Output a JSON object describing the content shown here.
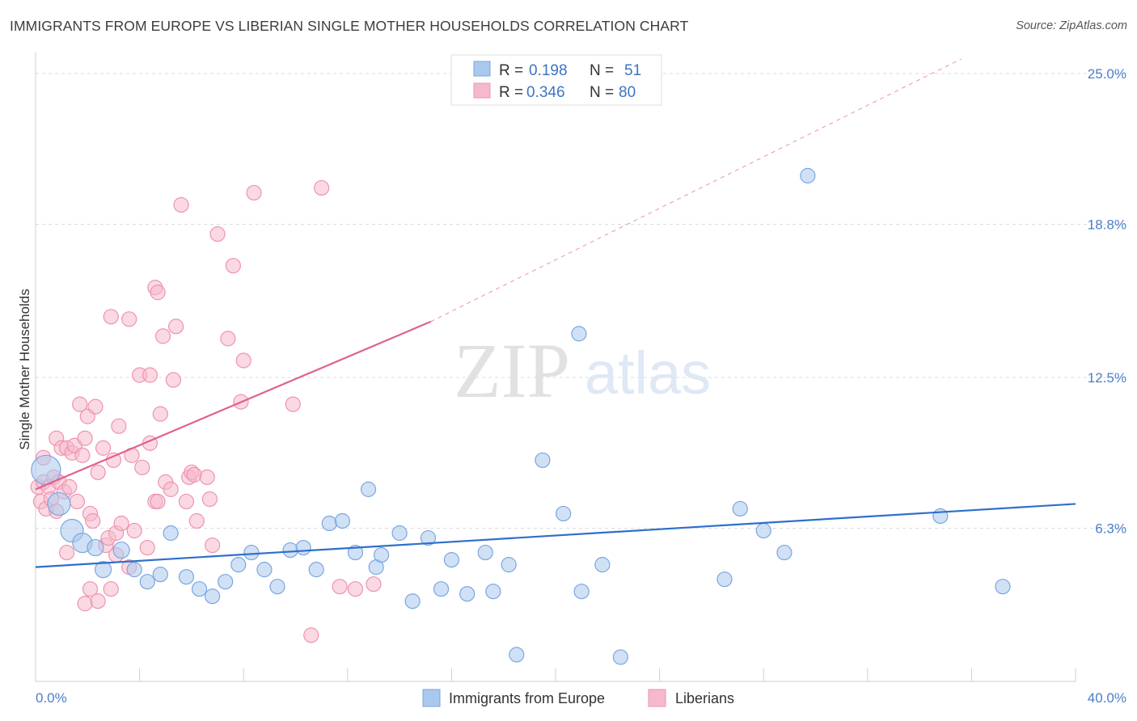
{
  "header": {
    "title": "IMMIGRANTS FROM EUROPE VS LIBERIAN SINGLE MOTHER HOUSEHOLDS CORRELATION CHART",
    "source": "Source: ZipAtlas.com"
  },
  "watermark": {
    "zip": "ZIP",
    "atlas": "atlas"
  },
  "colors": {
    "blue_fill": "#a9c8ee",
    "blue_stroke": "#7aa6de",
    "blue_line": "#2f6fca",
    "pink_fill": "#f6b9cc",
    "pink_stroke": "#ee93af",
    "pink_line": "#e0628a",
    "grid": "#dcdcdc",
    "tick_text": "#4a7ec9"
  },
  "legend": {
    "r_label": "R =",
    "n_label": "N =",
    "rows": [
      {
        "r": "0.198",
        "n": "51"
      },
      {
        "r": "0.346",
        "n": "80"
      }
    ]
  },
  "bottom_legend": [
    "Immigrants from Europe",
    "Liberians"
  ],
  "chart_data": {
    "type": "scatter",
    "xlabel": "",
    "ylabel": "Single Mother Households",
    "xlim": [
      0,
      40
    ],
    "ylim": [
      0,
      25.6
    ],
    "x_tick_labels": [
      {
        "value": 0,
        "label": "0.0%"
      },
      {
        "value": 40,
        "label": "40.0%"
      }
    ],
    "y_tick_labels": [
      {
        "value": 6.3,
        "label": "6.3%"
      },
      {
        "value": 12.5,
        "label": "12.5%"
      },
      {
        "value": 18.8,
        "label": "18.8%"
      },
      {
        "value": 25.0,
        "label": "25.0%"
      }
    ],
    "x_minor_ticks": [
      4,
      8,
      12,
      16,
      20,
      24,
      28,
      32,
      36,
      40
    ],
    "grid": true,
    "series": [
      {
        "name": "Immigrants from Europe",
        "R": 0.198,
        "N": 51,
        "trend": {
          "x0": 0,
          "y0": 4.7,
          "x1": 40,
          "y1": 7.3,
          "dashed_extension": false
        },
        "points": [
          [
            0.4,
            8.7,
            18
          ],
          [
            0.9,
            7.3,
            14
          ],
          [
            1.4,
            6.2,
            14
          ],
          [
            1.8,
            5.7,
            12
          ],
          [
            2.3,
            5.5,
            10
          ],
          [
            2.6,
            4.6,
            10
          ],
          [
            3.3,
            5.4,
            10
          ],
          [
            3.8,
            4.6,
            9
          ],
          [
            4.3,
            4.1,
            9
          ],
          [
            4.8,
            4.4,
            9
          ],
          [
            5.2,
            6.1,
            9
          ],
          [
            5.8,
            4.3,
            9
          ],
          [
            6.3,
            3.8,
            9
          ],
          [
            6.8,
            3.5,
            9
          ],
          [
            7.3,
            4.1,
            9
          ],
          [
            7.8,
            4.8,
            9
          ],
          [
            8.3,
            5.3,
            9
          ],
          [
            8.8,
            4.6,
            9
          ],
          [
            9.3,
            3.9,
            9
          ],
          [
            9.8,
            5.4,
            9
          ],
          [
            10.3,
            5.5,
            9
          ],
          [
            10.8,
            4.6,
            9
          ],
          [
            11.3,
            6.5,
            9
          ],
          [
            11.8,
            6.6,
            9
          ],
          [
            12.3,
            5.3,
            9
          ],
          [
            12.8,
            7.9,
            9
          ],
          [
            13.1,
            4.7,
            9
          ],
          [
            13.3,
            5.2,
            9
          ],
          [
            14.0,
            6.1,
            9
          ],
          [
            14.5,
            3.3,
            9
          ],
          [
            15.1,
            5.9,
            9
          ],
          [
            15.6,
            3.8,
            9
          ],
          [
            16.0,
            5.0,
            9
          ],
          [
            16.6,
            3.6,
            9
          ],
          [
            17.3,
            5.3,
            9
          ],
          [
            17.6,
            3.7,
            9
          ],
          [
            18.2,
            4.8,
            9
          ],
          [
            18.5,
            1.1,
            9
          ],
          [
            19.5,
            9.1,
            9
          ],
          [
            20.3,
            6.9,
            9
          ],
          [
            20.9,
            14.3,
            9
          ],
          [
            21.0,
            3.7,
            9
          ],
          [
            21.8,
            4.8,
            9
          ],
          [
            22.5,
            1.0,
            9
          ],
          [
            26.5,
            4.2,
            9
          ],
          [
            27.1,
            7.1,
            9
          ],
          [
            28.0,
            6.2,
            9
          ],
          [
            28.8,
            5.3,
            9
          ],
          [
            29.7,
            20.8,
            9
          ],
          [
            34.8,
            6.8,
            9
          ],
          [
            37.2,
            3.9,
            9
          ]
        ]
      },
      {
        "name": "Liberians",
        "R": 0.346,
        "N": 80,
        "trend": {
          "x0": 0,
          "y0": 7.9,
          "x1": 15.2,
          "y1": 14.8,
          "dashed_extension": true,
          "dash_x1": 35.6,
          "dash_y1": 25.6
        },
        "points": [
          [
            0.1,
            8.0,
            9
          ],
          [
            0.2,
            7.4,
            9
          ],
          [
            0.3,
            8.2,
            9
          ],
          [
            0.3,
            9.2,
            9
          ],
          [
            0.4,
            7.1,
            9
          ],
          [
            0.5,
            8.0,
            9
          ],
          [
            0.6,
            7.5,
            9
          ],
          [
            0.7,
            8.4,
            9
          ],
          [
            0.8,
            7.0,
            9
          ],
          [
            0.8,
            10.0,
            9
          ],
          [
            0.9,
            8.2,
            9
          ],
          [
            1.0,
            9.6,
            9
          ],
          [
            1.1,
            7.8,
            9
          ],
          [
            1.2,
            9.6,
            9
          ],
          [
            1.2,
            5.3,
            9
          ],
          [
            1.3,
            8.0,
            9
          ],
          [
            1.4,
            9.4,
            9
          ],
          [
            1.5,
            9.7,
            9
          ],
          [
            1.6,
            7.4,
            9
          ],
          [
            1.7,
            11.4,
            9
          ],
          [
            1.8,
            9.3,
            9
          ],
          [
            1.9,
            10.0,
            9
          ],
          [
            1.9,
            3.2,
            9
          ],
          [
            2.0,
            10.9,
            9
          ],
          [
            2.1,
            6.9,
            9
          ],
          [
            2.1,
            3.8,
            9
          ],
          [
            2.2,
            6.6,
            9
          ],
          [
            2.3,
            11.3,
            9
          ],
          [
            2.4,
            8.6,
            9
          ],
          [
            2.4,
            3.3,
            9
          ],
          [
            2.6,
            9.6,
            9
          ],
          [
            2.7,
            5.6,
            9
          ],
          [
            2.8,
            5.9,
            9
          ],
          [
            2.9,
            15.0,
            9
          ],
          [
            2.9,
            3.8,
            9
          ],
          [
            3.0,
            9.1,
            9
          ],
          [
            3.1,
            5.2,
            9
          ],
          [
            3.1,
            6.1,
            9
          ],
          [
            3.2,
            10.5,
            9
          ],
          [
            3.3,
            6.5,
            9
          ],
          [
            3.6,
            14.9,
            9
          ],
          [
            3.6,
            4.7,
            9
          ],
          [
            3.7,
            9.3,
            9
          ],
          [
            3.8,
            6.2,
            9
          ],
          [
            4.0,
            12.6,
            9
          ],
          [
            4.1,
            8.8,
            9
          ],
          [
            4.3,
            5.5,
            9
          ],
          [
            4.4,
            9.8,
            9
          ],
          [
            4.4,
            12.6,
            9
          ],
          [
            4.6,
            7.4,
            9
          ],
          [
            4.6,
            16.2,
            9
          ],
          [
            4.7,
            16.0,
            9
          ],
          [
            4.7,
            7.4,
            9
          ],
          [
            4.8,
            11.0,
            9
          ],
          [
            4.9,
            14.2,
            9
          ],
          [
            5.0,
            8.2,
            9
          ],
          [
            5.2,
            7.9,
            9
          ],
          [
            5.3,
            12.4,
            9
          ],
          [
            5.4,
            14.6,
            9
          ],
          [
            5.6,
            19.6,
            9
          ],
          [
            5.8,
            7.4,
            9
          ],
          [
            5.9,
            8.4,
            9
          ],
          [
            6.0,
            8.6,
            9
          ],
          [
            6.1,
            8.5,
            9
          ],
          [
            6.2,
            6.6,
            9
          ],
          [
            6.6,
            8.4,
            9
          ],
          [
            6.7,
            7.5,
            9
          ],
          [
            6.8,
            5.6,
            9
          ],
          [
            7.0,
            18.4,
            9
          ],
          [
            7.4,
            14.1,
            9
          ],
          [
            7.6,
            17.1,
            9
          ],
          [
            7.9,
            11.5,
            9
          ],
          [
            8.0,
            13.2,
            9
          ],
          [
            8.4,
            20.1,
            9
          ],
          [
            9.9,
            11.4,
            9
          ],
          [
            10.6,
            1.9,
            9
          ],
          [
            11.0,
            20.3,
            9
          ],
          [
            11.7,
            3.9,
            9
          ],
          [
            12.3,
            3.8,
            9
          ],
          [
            13.0,
            4.0,
            9
          ]
        ]
      }
    ]
  }
}
